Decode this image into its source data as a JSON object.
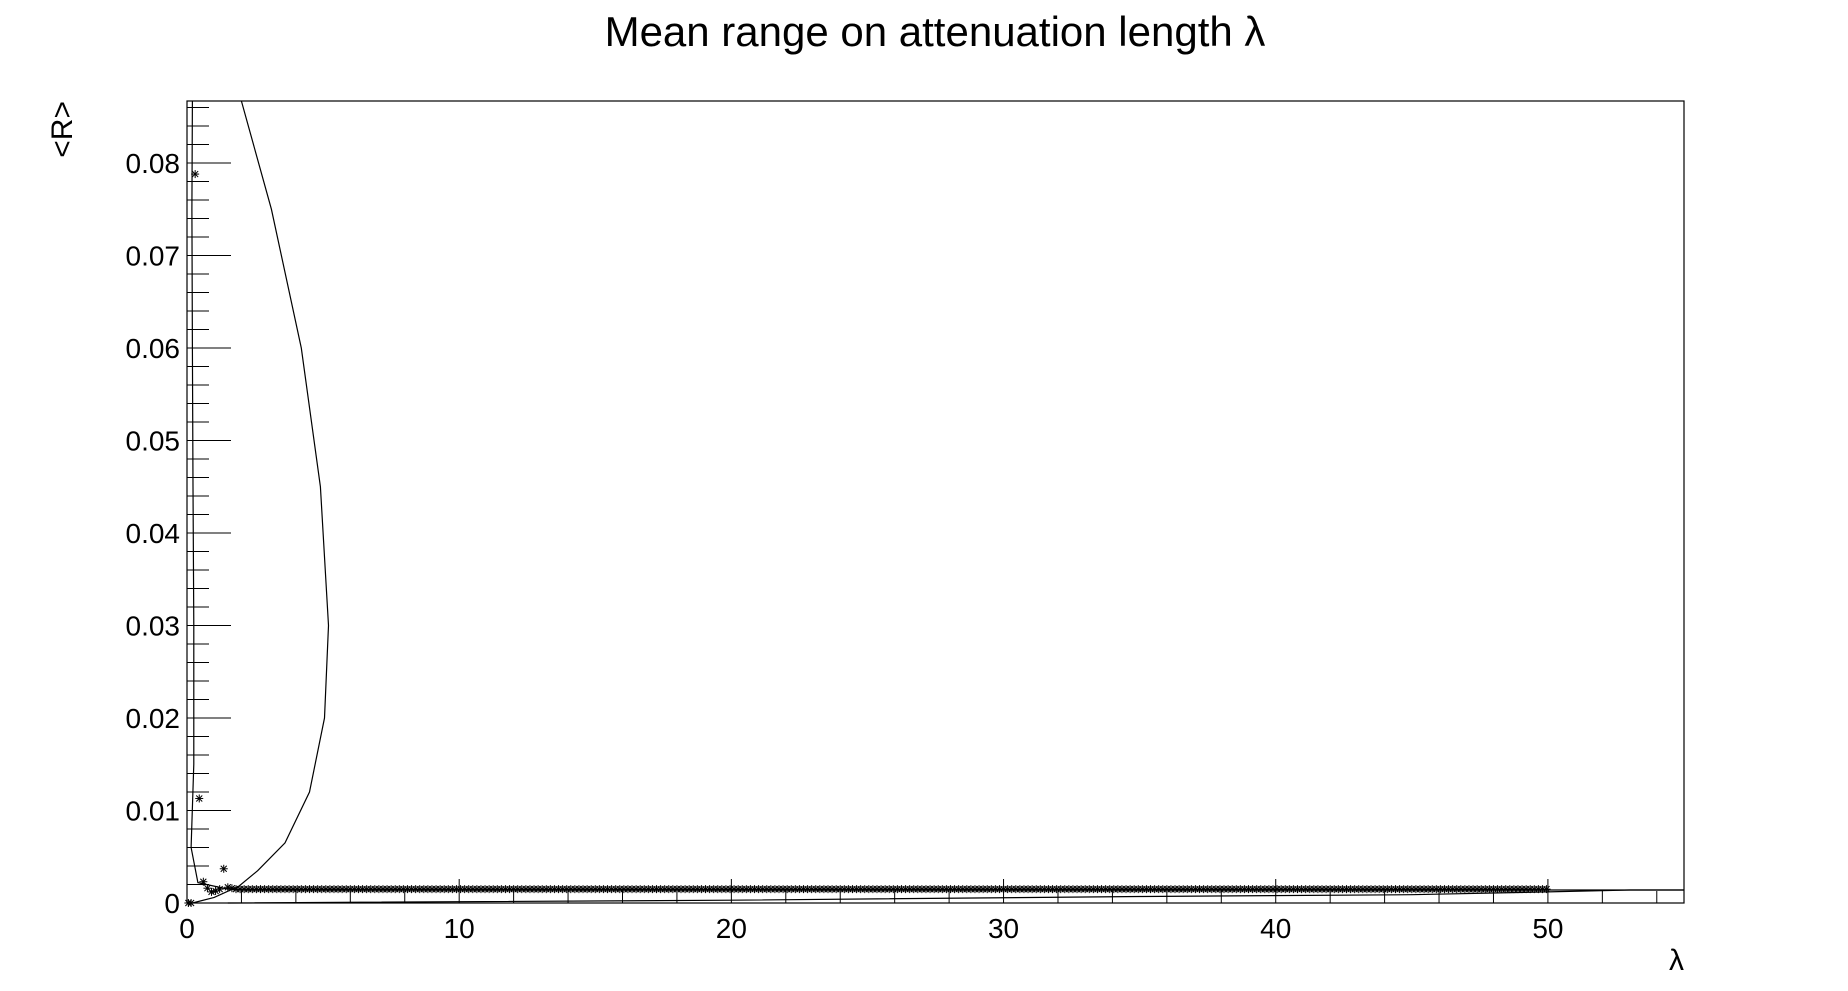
{
  "chart_data": {
    "type": "scatter",
    "title": "Mean range on attenuation length λ",
    "xlabel": "λ",
    "ylabel": "<R>",
    "xlim": [
      0,
      55
    ],
    "ylim": [
      0,
      0.0867
    ],
    "x_ticks": [
      0,
      10,
      20,
      30,
      40,
      50
    ],
    "x_tick_labels": [
      "0",
      "10",
      "20",
      "30",
      "40",
      "50"
    ],
    "y_ticks": [
      0,
      0.01,
      0.02,
      0.03,
      0.04,
      0.05,
      0.06,
      0.07,
      0.08
    ],
    "y_tick_labels": [
      "0",
      "0.01",
      "0.02",
      "0.03",
      "0.04",
      "0.05",
      "0.06",
      "0.07",
      "0.08"
    ],
    "grid": false,
    "legend": "none",
    "colors": {
      "axis": "#000000",
      "series": "#000000"
    },
    "series": [
      {
        "kind": "markers",
        "marker": "asterisk",
        "points": [
          [
            0.05,
            0.0
          ],
          [
            0.15,
            0.0
          ],
          [
            0.3,
            0.0788
          ],
          [
            0.45,
            0.0113
          ],
          [
            0.6,
            0.0023
          ],
          [
            0.75,
            0.0016
          ],
          [
            0.9,
            0.0012
          ],
          [
            1.05,
            0.0013
          ],
          [
            1.2,
            0.0015
          ],
          [
            1.35,
            0.0037
          ],
          [
            1.5,
            0.0017
          ],
          [
            1.65,
            0.0016
          ]
        ],
        "dense_tail": {
          "x_start": 1.8,
          "x_end": 50,
          "step": 0.15,
          "y": 0.0015
        }
      },
      {
        "kind": "line",
        "points": [
          [
            0.2,
            0.0867
          ],
          [
            0.18,
            0.075
          ],
          [
            0.2,
            0.06
          ],
          [
            0.22,
            0.045
          ],
          [
            0.25,
            0.03
          ],
          [
            0.25,
            0.015
          ],
          [
            0.15,
            0.006
          ],
          [
            0.4,
            0.0022
          ],
          [
            1.5,
            0.0015
          ],
          [
            2.2,
            0.0014
          ],
          [
            50,
            0.0014
          ],
          [
            55,
            0.0014
          ]
        ]
      },
      {
        "kind": "line",
        "points": [
          [
            2.0,
            0.0867
          ],
          [
            3.1,
            0.075
          ],
          [
            4.2,
            0.06
          ],
          [
            4.9,
            0.045
          ],
          [
            5.2,
            0.03
          ],
          [
            5.05,
            0.02
          ],
          [
            4.5,
            0.012
          ],
          [
            3.6,
            0.0065
          ],
          [
            2.6,
            0.0035
          ],
          [
            1.9,
            0.0018
          ],
          [
            1.0,
            0.0006
          ],
          [
            0.2,
            0.0
          ]
        ]
      },
      {
        "kind": "line",
        "points": [
          [
            1.5,
            0.0
          ],
          [
            20,
            0.0003
          ],
          [
            35,
            0.0007
          ],
          [
            45,
            0.0009
          ],
          [
            50,
            0.0012
          ],
          [
            53,
            0.0014
          ],
          [
            55,
            0.0014
          ]
        ]
      }
    ]
  }
}
